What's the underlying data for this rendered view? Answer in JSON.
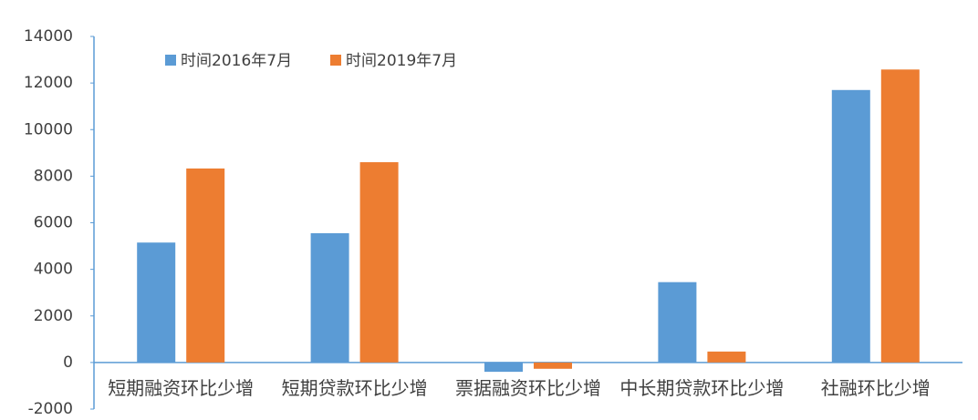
{
  "chart_data": {
    "type": "bar",
    "categories": [
      "短期融资环比少增",
      "短期贷款环比少增",
      "票据融资环比少增",
      "中长期贷款环比少增",
      "社融环比少增"
    ],
    "series": [
      {
        "name": "时间2016年7月",
        "color": "#5b9bd5",
        "values": [
          5150,
          5550,
          -400,
          3450,
          11700
        ]
      },
      {
        "name": "时间2019年7月",
        "color": "#ed7d31",
        "values": [
          8330,
          8600,
          -270,
          470,
          12580
        ]
      }
    ],
    "ylim": [
      -2000,
      14000
    ],
    "yticks": [
      -2000,
      0,
      2000,
      4000,
      6000,
      8000,
      10000,
      12000,
      14000
    ],
    "grid": false,
    "legend": "top-left"
  }
}
